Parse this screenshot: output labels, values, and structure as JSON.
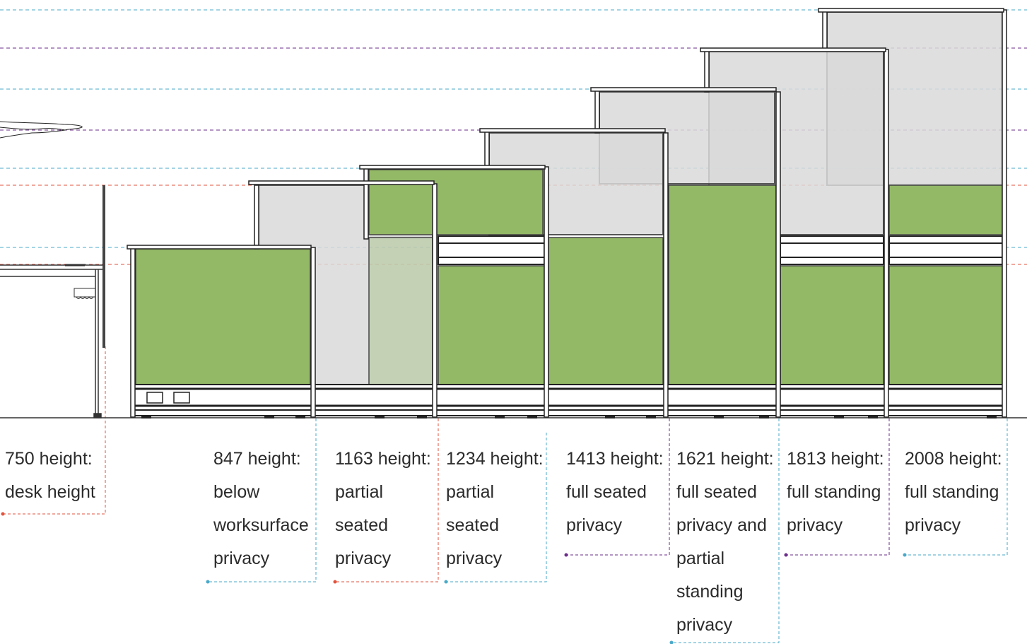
{
  "colors": {
    "panel_green": "#93b866",
    "panel_glass": "#dcdcdc",
    "frame": "#333333",
    "guide_blue": "#49a9c9",
    "guide_red": "#e2533c",
    "guide_purple": "#6a2e8a",
    "guide_gray": "#8d8d8d"
  },
  "labels": [
    {
      "id": "desk",
      "lines": [
        "750 height:",
        "desk height"
      ],
      "color": "#e2533c"
    },
    {
      "id": "h847",
      "lines": [
        "847 height:",
        "below",
        "worksurface",
        "privacy"
      ],
      "color": "#49a9c9"
    },
    {
      "id": "h1163",
      "lines": [
        "1163 height:",
        "partial",
        "seated",
        "privacy"
      ],
      "color": "#e2533c"
    },
    {
      "id": "h1234",
      "lines": [
        "1234 height:",
        "partial",
        "seated",
        "privacy"
      ],
      "color": "#49a9c9"
    },
    {
      "id": "h1413",
      "lines": [
        "1413 height:",
        "full seated",
        "privacy"
      ],
      "color": "#6a2e8a"
    },
    {
      "id": "h1621",
      "lines": [
        "1621 height:",
        "full seated",
        "privacy and",
        "partial",
        "standing",
        "privacy"
      ],
      "color": "#49a9c9"
    },
    {
      "id": "h1813",
      "lines": [
        "1813 height:",
        "full standing",
        "privacy"
      ],
      "color": "#6a2e8a"
    },
    {
      "id": "h2008",
      "lines": [
        "2008 height:",
        "full standing",
        "privacy"
      ],
      "color": "#49a9c9"
    }
  ]
}
